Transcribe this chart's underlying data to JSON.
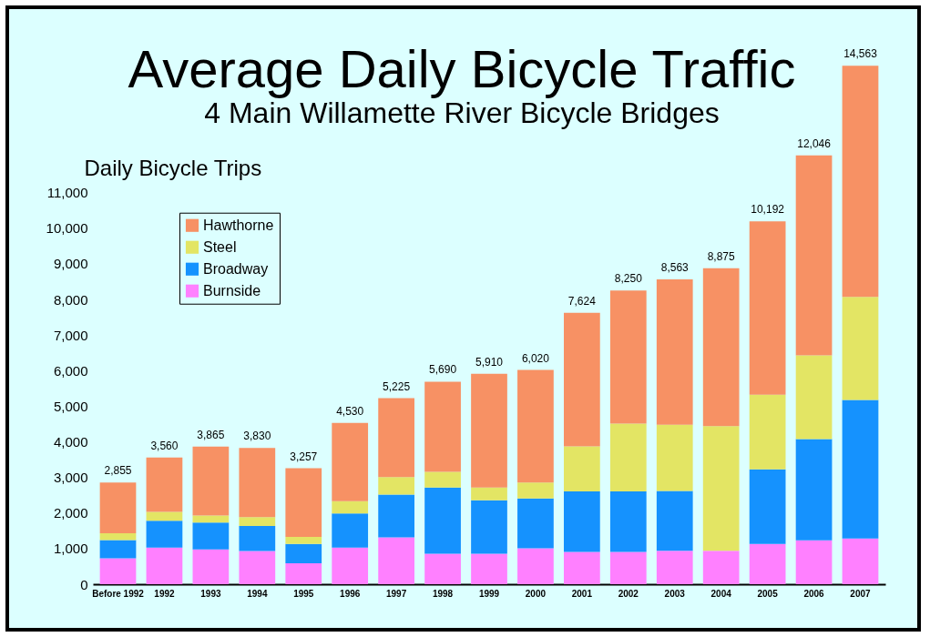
{
  "chart_data": {
    "type": "bar",
    "title": "Average Daily Bicycle Traffic",
    "subtitle": "4 Main Willamette River Bicycle Bridges",
    "ylabel": "Daily Bicycle Trips",
    "categories": [
      "Before 1992",
      "1992",
      "1993",
      "1994",
      "1995",
      "1996",
      "1997",
      "1998",
      "1999",
      "2000",
      "2001",
      "2002",
      "2003",
      "2004",
      "2005",
      "2006",
      "2007"
    ],
    "stacked": true,
    "series": [
      {
        "name": "Burnside",
        "color": "#ff80ff",
        "values": [
          730,
          1030,
          980,
          935,
          590,
          1030,
          1315,
          855,
          855,
          1010,
          910,
          910,
          940,
          940,
          1130,
          1235,
          1285
        ]
      },
      {
        "name": "Broadway",
        "color": "#1592fe",
        "values": [
          510,
          750,
          750,
          700,
          540,
          960,
          1200,
          1860,
          1505,
          1400,
          1700,
          1700,
          1680,
          0,
          2095,
          2845,
          3890
        ]
      },
      {
        "name": "Steel",
        "color": "#e3e564",
        "values": [
          190,
          250,
          200,
          250,
          200,
          345,
          495,
          440,
          355,
          450,
          1265,
          1905,
          1860,
          3500,
          2100,
          2350,
          2895
        ]
      },
      {
        "name": "Hawthorne",
        "color": "#f79164",
        "values": [
          1425,
          1530,
          1935,
          1945,
          1927,
          2195,
          2215,
          2535,
          3195,
          3160,
          3749,
          3735,
          4083,
          4435,
          4867,
          5616,
          6493
        ]
      }
    ],
    "totals": [
      "2,855",
      "3,560",
      "3,865",
      "3,830",
      "3,257",
      "4,530",
      "5,225",
      "5,690",
      "5,910",
      "6,020",
      "7,624",
      "8,250",
      "8,563",
      "8,875",
      "10,192",
      "12,046",
      "14,563"
    ],
    "ylim": [
      0,
      14700
    ],
    "yticks": [
      0,
      {
        "value": 1000,
        "label": "1,000"
      },
      {
        "value": 2000,
        "label": "2,000"
      },
      {
        "value": 3000,
        "label": "3,000"
      },
      {
        "value": 4000,
        "label": "4,000"
      },
      {
        "value": 5000,
        "label": "5,000"
      },
      {
        "value": 6000,
        "label": "6,000"
      },
      {
        "value": 7000,
        "label": "7,000"
      },
      {
        "value": 8000,
        "label": "8,000"
      },
      {
        "value": 9000,
        "label": "9,000"
      },
      {
        "value": 10000,
        "label": "10,000"
      },
      {
        "value": 11000,
        "label": "11,000"
      }
    ],
    "grid": false,
    "legend": "top left"
  }
}
